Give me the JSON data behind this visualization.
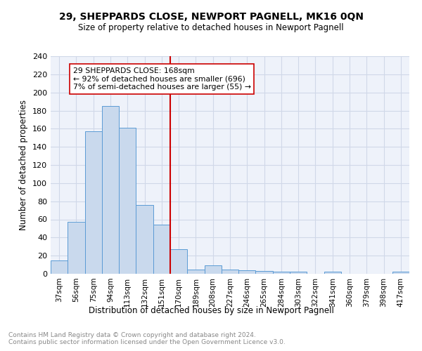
{
  "title": "29, SHEPPARDS CLOSE, NEWPORT PAGNELL, MK16 0QN",
  "subtitle": "Size of property relative to detached houses in Newport Pagnell",
  "xlabel": "Distribution of detached houses by size in Newport Pagnell",
  "ylabel": "Number of detached properties",
  "categories": [
    "37sqm",
    "56sqm",
    "75sqm",
    "94sqm",
    "113sqm",
    "132sqm",
    "151sqm",
    "170sqm",
    "189sqm",
    "208sqm",
    "227sqm",
    "246sqm",
    "265sqm",
    "284sqm",
    "303sqm",
    "322sqm",
    "341sqm",
    "360sqm",
    "379sqm",
    "398sqm",
    "417sqm"
  ],
  "values": [
    15,
    57,
    157,
    185,
    161,
    76,
    54,
    27,
    5,
    9,
    5,
    4,
    3,
    2,
    2,
    0,
    2,
    0,
    0,
    0,
    2
  ],
  "bar_color": "#c9d9ed",
  "bar_edge_color": "#5b9bd5",
  "grid_color": "#d0d8e8",
  "background_color": "#eef2fa",
  "vline_x_index": 7,
  "vline_color": "#cc0000",
  "annotation_text": "29 SHEPPARDS CLOSE: 168sqm\n← 92% of detached houses are smaller (696)\n7% of semi-detached houses are larger (55) →",
  "annotation_box_color": "#ffffff",
  "annotation_box_edge": "#cc0000",
  "footer_text": "Contains HM Land Registry data © Crown copyright and database right 2024.\nContains public sector information licensed under the Open Government Licence v3.0.",
  "ylim": [
    0,
    240
  ],
  "yticks": [
    0,
    20,
    40,
    60,
    80,
    100,
    120,
    140,
    160,
    180,
    200,
    220,
    240
  ]
}
